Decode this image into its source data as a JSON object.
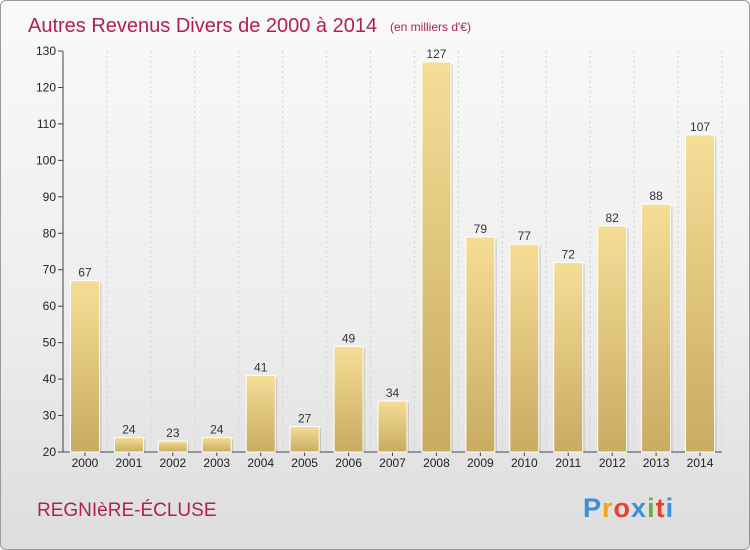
{
  "chart_data": {
    "type": "bar",
    "title": "Autres Revenus Divers de 2000 à 2014",
    "subtitle": "(en milliers d'€)",
    "categories": [
      "2000",
      "2001",
      "2002",
      "2003",
      "2004",
      "2005",
      "2006",
      "2007",
      "2008",
      "2009",
      "2010",
      "2011",
      "2012",
      "2013",
      "2014"
    ],
    "values": [
      67,
      24,
      23,
      24,
      41,
      27,
      49,
      34,
      127,
      79,
      77,
      72,
      82,
      88,
      107
    ],
    "ylim": [
      20,
      130
    ],
    "yticks": [
      20,
      30,
      40,
      50,
      60,
      70,
      80,
      90,
      100,
      110,
      120,
      130
    ],
    "grid": "vertical",
    "bar_color": "#e9cd7e"
  },
  "footer": {
    "commune": "REGNIèRE-ÉCLUSE",
    "logo": [
      "P",
      "r",
      "o",
      "x",
      "i",
      "t",
      "i"
    ],
    "logo_colors": [
      "#3b8fd8",
      "#f5a31a",
      "#e8402a",
      "#3b8fd8",
      "#64b33f",
      "#e8402a",
      "#3b8fd8"
    ]
  }
}
